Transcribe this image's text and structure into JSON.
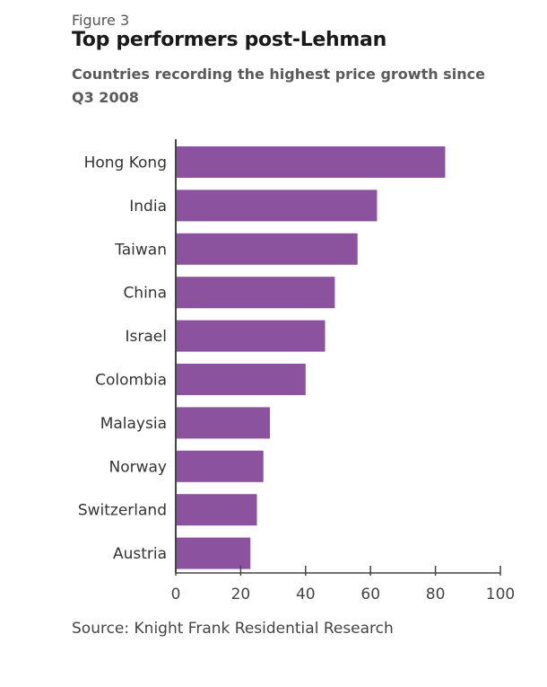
{
  "figure_label": "Figure 3",
  "title": "Top performers post-Lehman",
  "subtitle": "Countries recording the highest price growth since Q3 2008",
  "source": "Source: Knight Frank Residential Research",
  "chart_data": {
    "type": "bar",
    "orientation": "horizontal",
    "title": "Top performers post-Lehman",
    "subtitle": "Countries recording the highest price growth since Q3 2008",
    "xlabel": "",
    "ylabel": "",
    "categories": [
      "Hong Kong",
      "India",
      "Taiwan",
      "China",
      "Israel",
      "Colombia",
      "Malaysia",
      "Norway",
      "Switzerland",
      "Austria"
    ],
    "values": [
      83,
      62,
      56,
      49,
      46,
      40,
      29,
      27,
      25,
      23
    ],
    "xlim": [
      0,
      100
    ],
    "xticks": [
      0,
      20,
      40,
      60,
      80,
      100
    ],
    "grid": false,
    "legend": "none",
    "bar_color": "#8b529d",
    "axis_color": "#444444"
  }
}
